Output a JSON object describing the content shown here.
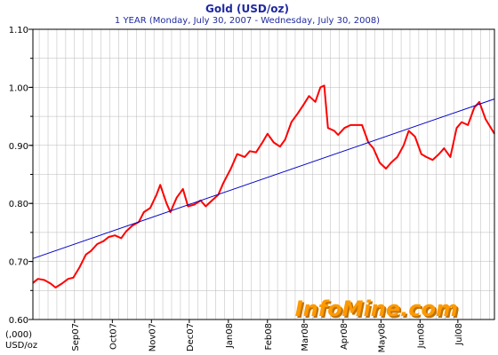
{
  "chart_data": {
    "type": "line",
    "title": "Gold (USD/oz)",
    "subtitle": "1 YEAR (Monday, July 30, 2007  -  Wednesday, July 30, 2008)",
    "ylabel": "(,000)\nUSD/oz",
    "ylim": [
      0.6,
      1.1
    ],
    "yticks": [
      "0.60",
      "0.70",
      "0.80",
      "0.90",
      "1.00",
      "1.10"
    ],
    "xlim": [
      "2007-07-30",
      "2008-07-30"
    ],
    "xticks": [
      {
        "label": "Sep07",
        "date": "2007-09-01"
      },
      {
        "label": "Oct07",
        "date": "2007-10-01"
      },
      {
        "label": "Nov07",
        "date": "2007-11-01"
      },
      {
        "label": "Dec07",
        "date": "2007-12-01"
      },
      {
        "label": "Jan08",
        "date": "2008-01-01"
      },
      {
        "label": "Feb08",
        "date": "2008-02-01"
      },
      {
        "label": "Mar08",
        "date": "2008-03-01"
      },
      {
        "label": "Apr08",
        "date": "2008-04-01"
      },
      {
        "label": "May08",
        "date": "2008-05-01"
      },
      {
        "label": "Jun08",
        "date": "2008-06-01"
      },
      {
        "label": "Jul08",
        "date": "2008-07-01"
      }
    ],
    "grid": true,
    "series": [
      {
        "color": "#ff0000",
        "x": [
          "2007-07-30",
          "2007-08-03",
          "2007-08-08",
          "2007-08-13",
          "2007-08-17",
          "2007-08-22",
          "2007-08-27",
          "2007-08-31",
          "2007-09-05",
          "2007-09-10",
          "2007-09-14",
          "2007-09-19",
          "2007-09-24",
          "2007-09-28",
          "2007-10-03",
          "2007-10-08",
          "2007-10-12",
          "2007-10-17",
          "2007-10-22",
          "2007-10-26",
          "2007-10-31",
          "2007-11-05",
          "2007-11-08",
          "2007-11-13",
          "2007-11-16",
          "2007-11-21",
          "2007-11-26",
          "2007-11-30",
          "2007-12-05",
          "2007-12-10",
          "2007-12-14",
          "2007-12-19",
          "2007-12-24",
          "2007-12-28",
          "2008-01-03",
          "2008-01-08",
          "2008-01-14",
          "2008-01-18",
          "2008-01-23",
          "2008-01-28",
          "2008-02-01",
          "2008-02-06",
          "2008-02-11",
          "2008-02-15",
          "2008-02-20",
          "2008-02-25",
          "2008-02-29",
          "2008-03-05",
          "2008-03-10",
          "2008-03-14",
          "2008-03-17",
          "2008-03-20",
          "2008-03-25",
          "2008-03-28",
          "2008-04-02",
          "2008-04-07",
          "2008-04-11",
          "2008-04-16",
          "2008-04-21",
          "2008-04-25",
          "2008-04-30",
          "2008-05-05",
          "2008-05-09",
          "2008-05-14",
          "2008-05-19",
          "2008-05-23",
          "2008-05-28",
          "2008-06-02",
          "2008-06-06",
          "2008-06-11",
          "2008-06-16",
          "2008-06-20",
          "2008-06-25",
          "2008-06-30",
          "2008-07-04",
          "2008-07-09",
          "2008-07-14",
          "2008-07-18",
          "2008-07-23",
          "2008-07-30"
        ],
        "values": [
          0.663,
          0.67,
          0.668,
          0.662,
          0.655,
          0.662,
          0.67,
          0.672,
          0.69,
          0.712,
          0.718,
          0.73,
          0.735,
          0.742,
          0.745,
          0.74,
          0.752,
          0.762,
          0.768,
          0.785,
          0.792,
          0.815,
          0.832,
          0.8,
          0.785,
          0.81,
          0.825,
          0.795,
          0.798,
          0.805,
          0.795,
          0.805,
          0.815,
          0.835,
          0.86,
          0.885,
          0.88,
          0.89,
          0.888,
          0.905,
          0.92,
          0.905,
          0.898,
          0.91,
          0.94,
          0.955,
          0.968,
          0.985,
          0.975,
          1.0,
          1.003,
          0.93,
          0.925,
          0.918,
          0.93,
          0.935,
          0.935,
          0.935,
          0.905,
          0.895,
          0.87,
          0.86,
          0.87,
          0.88,
          0.9,
          0.925,
          0.915,
          0.885,
          0.88,
          0.875,
          0.885,
          0.895,
          0.88,
          0.93,
          0.94,
          0.935,
          0.965,
          0.975,
          0.945,
          0.92
        ]
      },
      {
        "color": "#0000c8",
        "x": [
          "2007-07-30",
          "2008-07-30"
        ],
        "values": [
          0.705,
          0.98
        ]
      }
    ]
  },
  "watermark": {
    "text": "InfoMine.com",
    "color": "#ff9900"
  },
  "colors": {
    "background": "#ffffff",
    "grid": "#b8b8b8",
    "axis": "#000000",
    "title": "#1f2aa0"
  }
}
